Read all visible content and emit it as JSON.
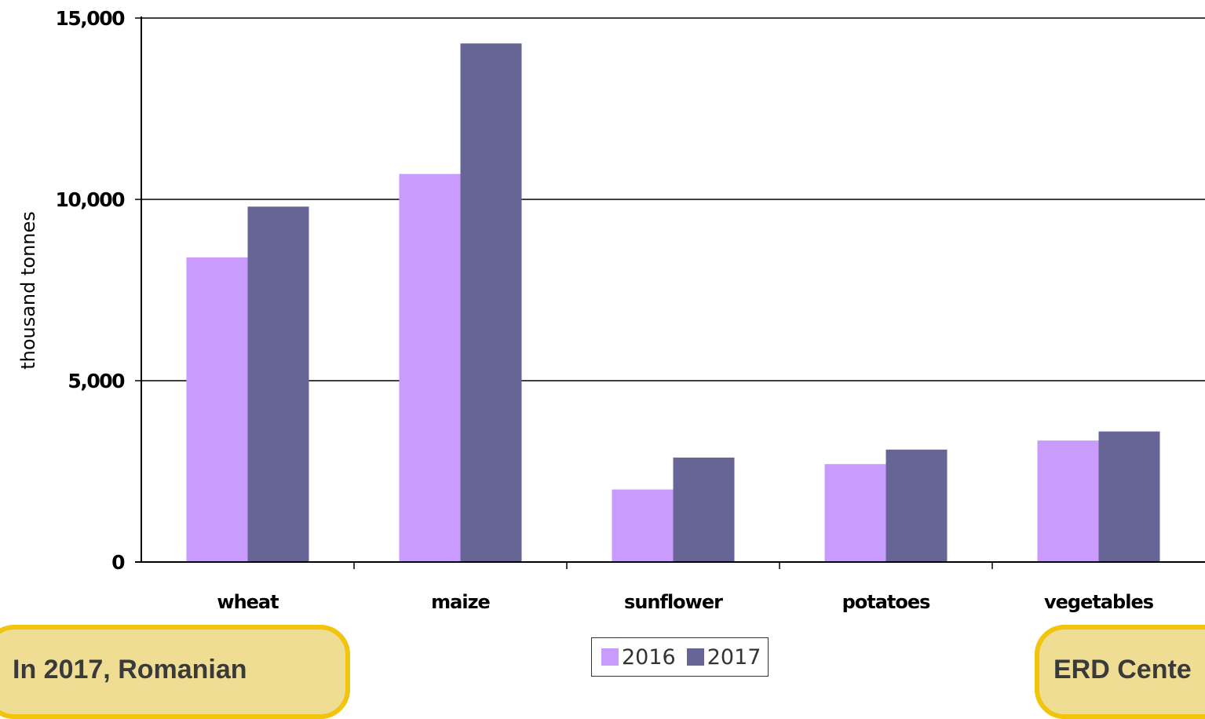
{
  "chart_data": {
    "type": "bar",
    "title": "",
    "xlabel": "",
    "ylabel": "thousand tonnes",
    "categories": [
      "wheat",
      "maize",
      "sunflower",
      "potatoes",
      "vegetables"
    ],
    "series": [
      {
        "name": "2016",
        "values": [
          8400,
          10700,
          2000,
          2700,
          3350
        ],
        "color": "#c99bfd"
      },
      {
        "name": "2017",
        "values": [
          9800,
          14300,
          2880,
          3100,
          3600
        ],
        "color": "#676496"
      }
    ],
    "ylim": [
      0,
      15000
    ],
    "yticks": [
      0,
      5000,
      10000,
      15000
    ],
    "ytick_labels": [
      "0",
      "5,000",
      "10,000",
      "15,000"
    ],
    "grid": true,
    "legend_position": "bottom-center"
  },
  "callouts": {
    "left": "In 2017, Romanian",
    "right": "ERD Cente"
  }
}
